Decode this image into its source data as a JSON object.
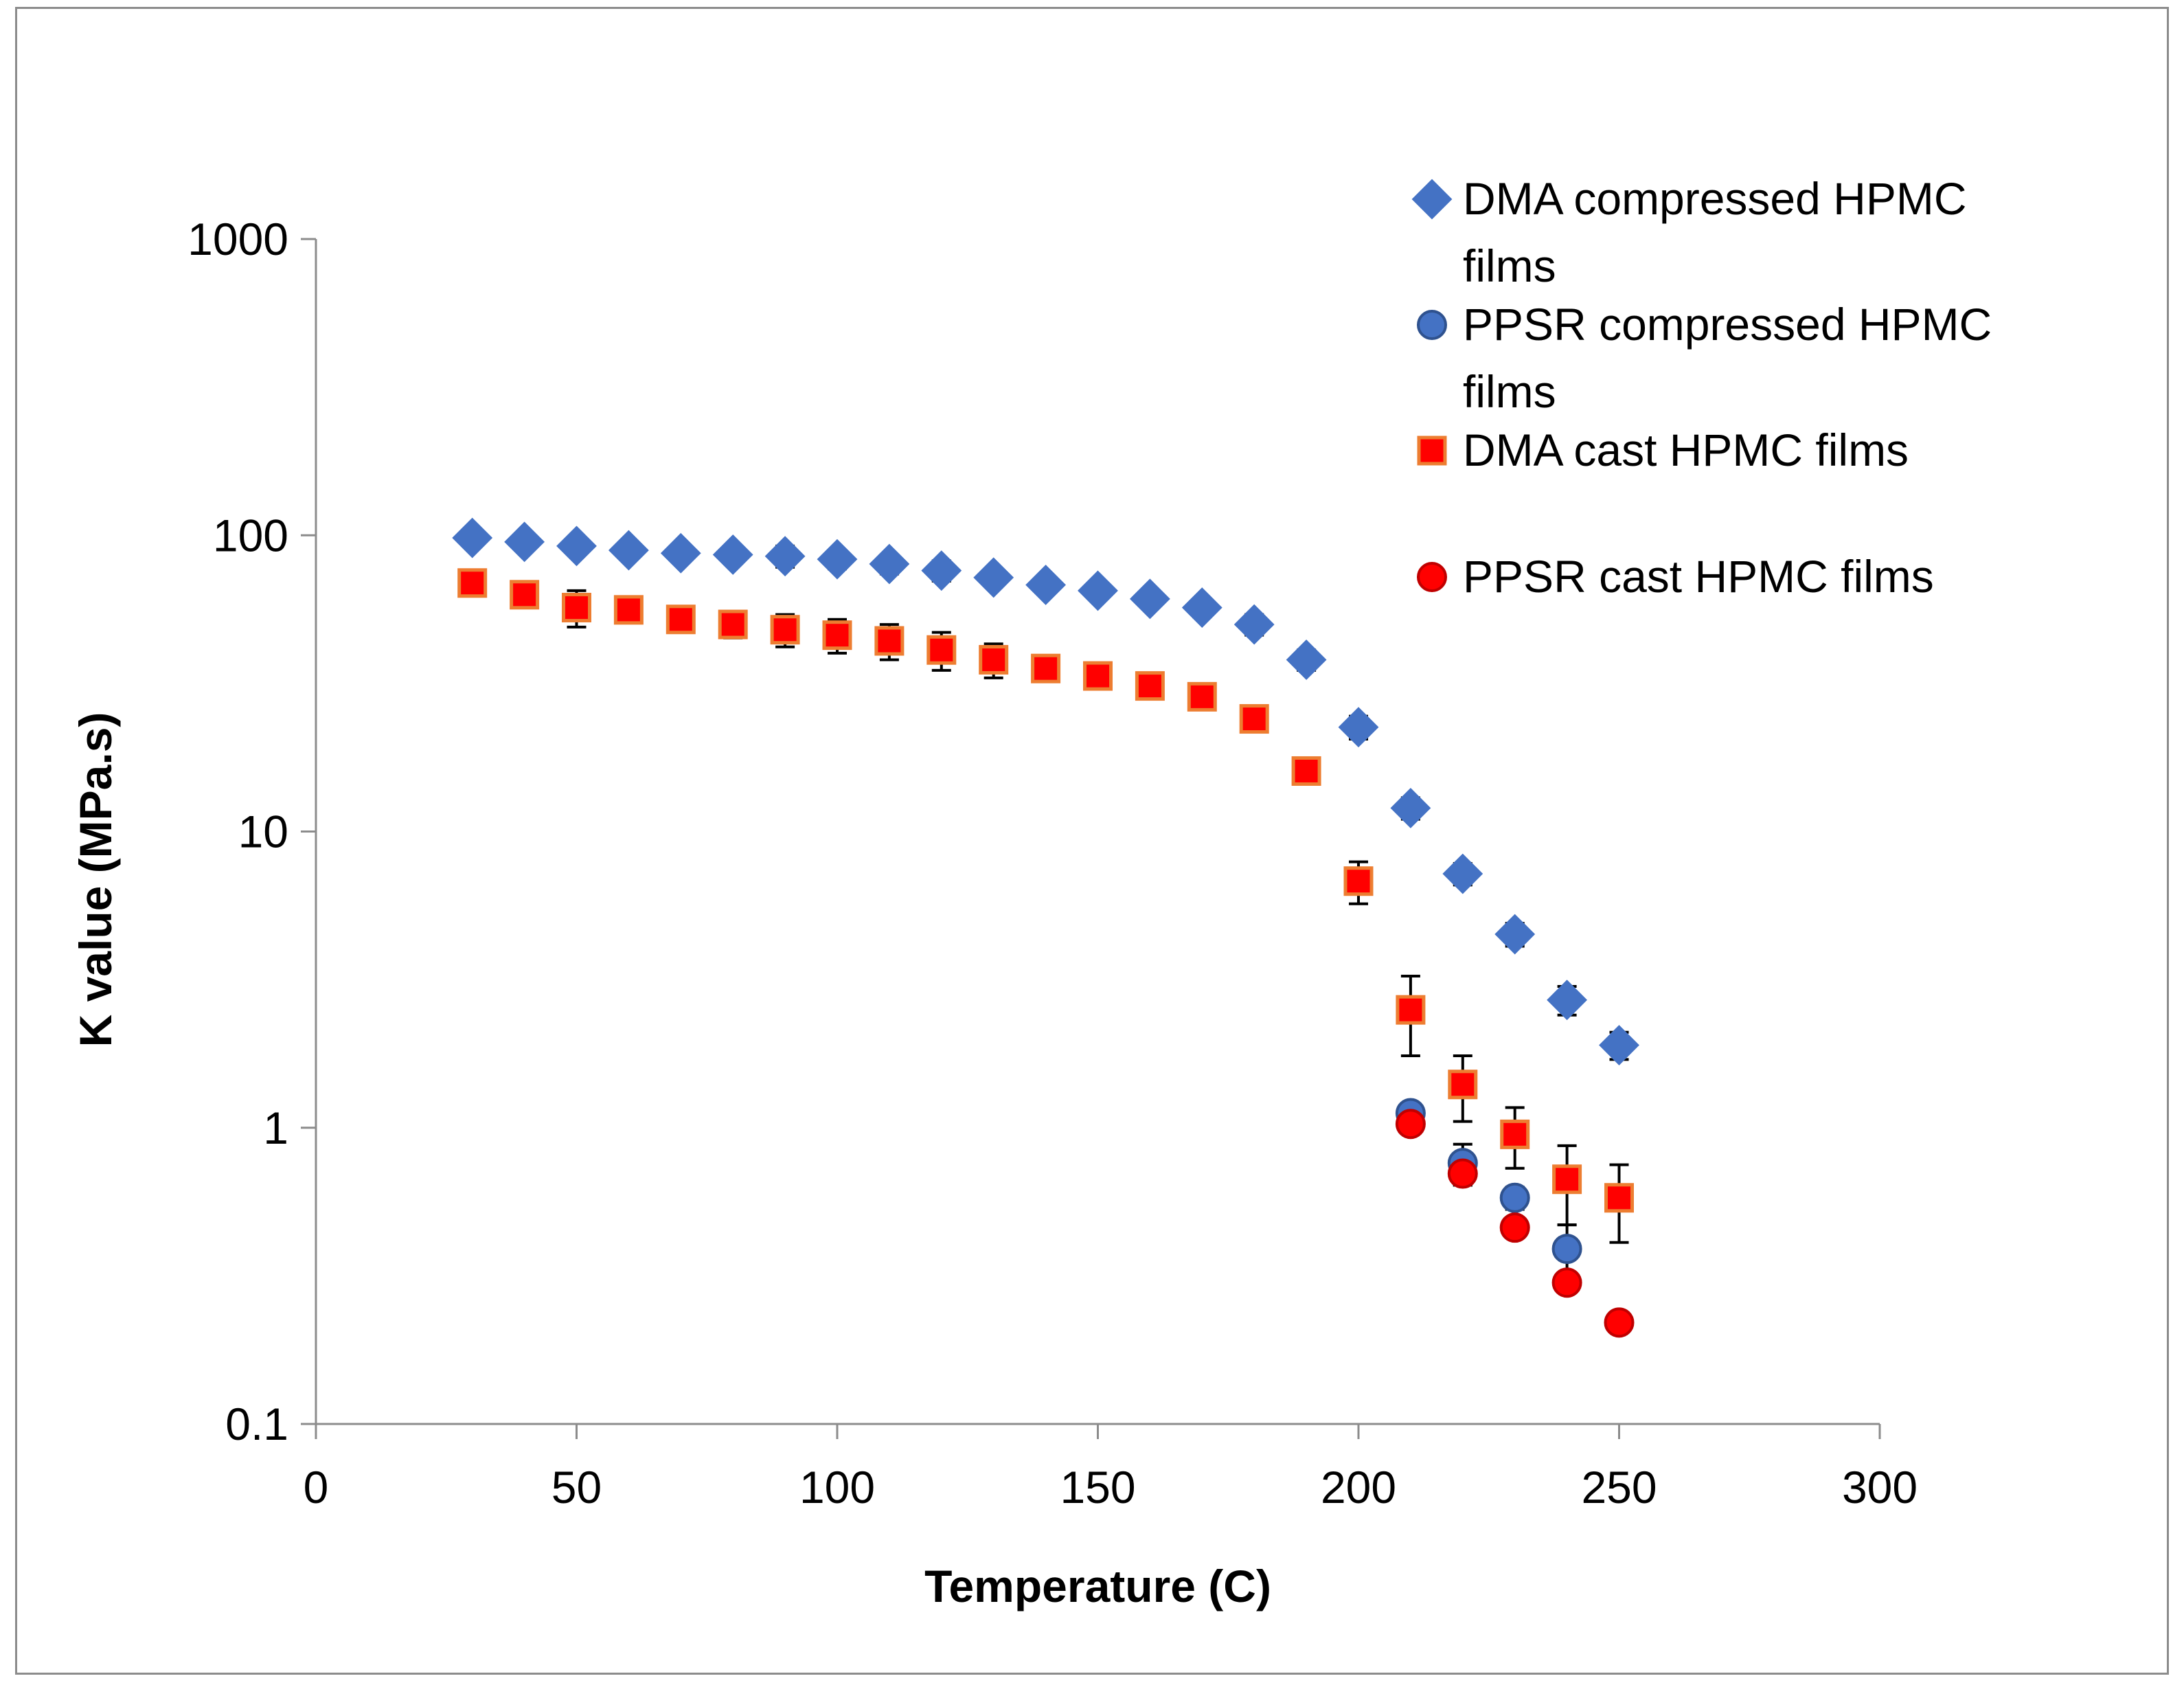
{
  "chart_data": {
    "type": "scatter",
    "title": "",
    "xlabel": "Temperature (C)",
    "ylabel": "K value (MPa.s)",
    "xlim": [
      0,
      300
    ],
    "ylim": [
      0.1,
      1000
    ],
    "yscale": "log",
    "x_ticks": [
      0,
      50,
      100,
      150,
      200,
      250,
      300
    ],
    "y_ticks": [
      0.1,
      1,
      10,
      100,
      1000
    ],
    "x_tick_labels": [
      "0",
      "50",
      "100",
      "150",
      "200",
      "250",
      "300"
    ],
    "y_tick_labels": [
      "0.1",
      "1",
      "10",
      "100",
      "1000"
    ],
    "grid": false,
    "legend_position": "top-right",
    "series": [
      {
        "name": "DMA compressed HPMC films",
        "legend_lines": [
          "DMA compressed HPMC",
          "films"
        ],
        "marker": "diamond",
        "color": "#4472C4",
        "x": [
          30,
          40,
          50,
          60,
          70,
          80,
          90,
          100,
          110,
          120,
          130,
          140,
          150,
          160,
          170,
          180,
          190,
          200,
          210,
          220,
          230,
          240,
          250
        ],
        "y": [
          98,
          95,
          92,
          89,
          87,
          86,
          85,
          83,
          80,
          76,
          72,
          68,
          65,
          61,
          57,
          50,
          38,
          22.5,
          12,
          7.2,
          4.5,
          2.7,
          1.9
        ],
        "err": [
          6,
          6,
          6,
          6,
          6,
          6,
          7,
          6,
          6,
          6,
          5,
          4,
          4,
          4,
          4,
          4,
          3,
          2,
          1,
          0.6,
          0.4,
          0.3,
          0.2
        ]
      },
      {
        "name": "PPSR compressed HPMC films",
        "legend_lines": [
          "PPSR compressed HPMC",
          "films"
        ],
        "marker": "circle",
        "color": "#4472C4",
        "x": [
          210,
          220,
          230,
          240
        ],
        "y": [
          1.12,
          0.76,
          0.58,
          0.39
        ],
        "err": [
          0.08,
          0.12,
          0.05,
          0.08
        ]
      },
      {
        "name": "DMA cast HPMC films",
        "legend_lines": [
          "DMA cast HPMC films"
        ],
        "marker": "square",
        "color": "#FF0000",
        "edge": "#ED7D31",
        "x": [
          30,
          40,
          50,
          60,
          70,
          80,
          90,
          100,
          110,
          120,
          130,
          140,
          150,
          160,
          170,
          180,
          190,
          200,
          210,
          220,
          230,
          240,
          250
        ],
        "y": [
          69,
          63,
          57,
          56,
          52,
          50,
          48,
          46,
          44,
          41,
          38,
          35.5,
          33.5,
          31,
          28.5,
          24,
          16,
          6.8,
          2.5,
          1.4,
          0.95,
          0.67,
          0.58
        ],
        "err": [
          4,
          4,
          8,
          5,
          4,
          5,
          6,
          6,
          6,
          6,
          5,
          3,
          2,
          2,
          2,
          1.5,
          1,
          1.1,
          0.75,
          0.35,
          0.22,
          0.2,
          0.17
        ]
      },
      {
        "name": "PPSR cast HPMC films",
        "legend_lines": [
          "PPSR cast HPMC films"
        ],
        "marker": "circle",
        "color": "#FF0000",
        "x": [
          210,
          220,
          230,
          240,
          250
        ],
        "y": [
          1.03,
          0.7,
          0.46,
          0.3,
          0.22
        ],
        "err": [
          0,
          0.06,
          0,
          0,
          0
        ]
      }
    ]
  }
}
